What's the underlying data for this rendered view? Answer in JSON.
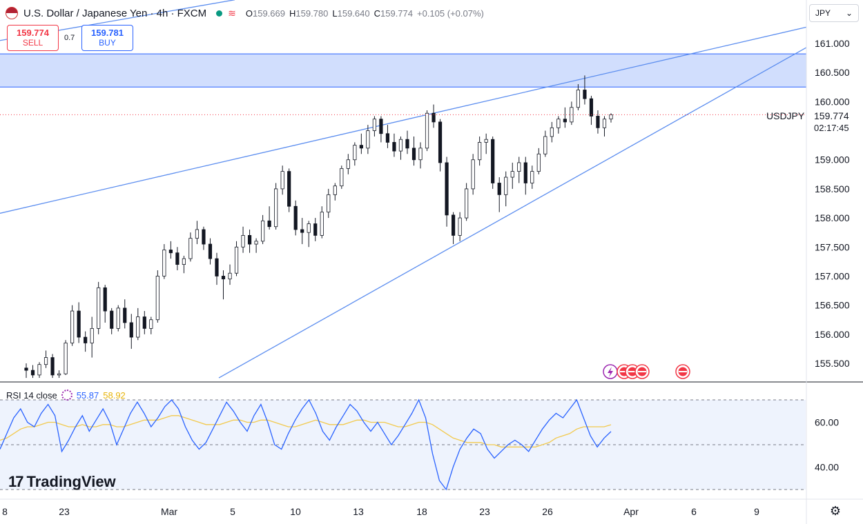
{
  "header": {
    "title": "U.S. Dollar / Japanese Yen · 4h · FXCM",
    "ohlc": [
      {
        "k": "O",
        "v": "159.669"
      },
      {
        "k": "H",
        "v": "159.780"
      },
      {
        "k": "L",
        "v": "159.640"
      },
      {
        "k": "C",
        "v": "159.774"
      },
      {
        "k": "",
        "v": "+0.105 (+0.07%)"
      }
    ]
  },
  "trade": {
    "sell_price": "159.774",
    "sell_label": "SELL",
    "spread": "0.7",
    "buy_price": "159.781",
    "buy_label": "BUY"
  },
  "currency_select": "JPY",
  "price_tag": {
    "symbol": "USDJPY",
    "price": "159.774",
    "countdown": "02:17:45"
  },
  "rsi": {
    "label": "RSI 14 close",
    "rsi_value": "55.87",
    "ma_value": "58.92"
  },
  "brand": "TradingView",
  "colors": {
    "up": "#ffffff",
    "down": "#131722",
    "line": "#5b8def",
    "zone": "#c9d8fd",
    "rsi": "#2962ff",
    "rsi_ma": "#f2c94c"
  },
  "chart_data": {
    "type": "candlestick",
    "price_axis": {
      "ticks": [
        "161.000",
        "160.500",
        "160.000",
        "159.000",
        "158.500",
        "158.000",
        "157.500",
        "157.000",
        "156.500",
        "156.000",
        "155.500"
      ],
      "range": [
        155.25,
        161.6
      ]
    },
    "time_axis": {
      "labels": [
        "8",
        "23",
        "Mar",
        "5",
        "10",
        "13",
        "18",
        "23",
        "26",
        "Apr",
        "6",
        "9"
      ]
    },
    "resistance_zone": [
      160.25,
      160.82
    ],
    "last_price": 159.774,
    "trendlines": {
      "upper": [
        [
          0,
          158.08
        ],
        [
          1168,
          161.28
        ]
      ],
      "lower": [
        [
          317,
          155.25
        ],
        [
          1168,
          160.93
        ]
      ],
      "top_line": [
        [
          0,
          161.05
        ],
        [
          340,
          161.75
        ]
      ]
    },
    "candles": [
      [
        155.42,
        155.5,
        155.25,
        155.38
      ],
      [
        155.38,
        155.47,
        155.25,
        155.3
      ],
      [
        155.3,
        155.52,
        155.25,
        155.48
      ],
      [
        155.48,
        155.72,
        155.42,
        155.6
      ],
      [
        155.6,
        155.66,
        155.25,
        155.3
      ],
      [
        155.3,
        155.38,
        155.25,
        155.32
      ],
      [
        155.32,
        155.9,
        155.3,
        155.85
      ],
      [
        155.85,
        156.5,
        155.8,
        156.4
      ],
      [
        156.4,
        156.55,
        155.85,
        155.95
      ],
      [
        155.95,
        156.05,
        155.7,
        155.85
      ],
      [
        155.85,
        156.3,
        155.6,
        156.1
      ],
      [
        156.1,
        156.9,
        156.0,
        156.8
      ],
      [
        156.8,
        156.85,
        156.2,
        156.4
      ],
      [
        156.4,
        156.45,
        156.0,
        156.1
      ],
      [
        156.1,
        156.5,
        156.05,
        156.45
      ],
      [
        156.45,
        156.6,
        156.1,
        156.2
      ],
      [
        156.2,
        156.35,
        155.75,
        155.95
      ],
      [
        155.95,
        156.45,
        155.9,
        156.3
      ],
      [
        156.3,
        156.4,
        156.0,
        156.1
      ],
      [
        156.1,
        156.3,
        156.0,
        156.25
      ],
      [
        156.25,
        157.1,
        156.2,
        157.0
      ],
      [
        157.0,
        157.55,
        156.95,
        157.45
      ],
      [
        157.45,
        157.6,
        157.3,
        157.4
      ],
      [
        157.4,
        157.5,
        157.1,
        157.2
      ],
      [
        157.2,
        157.35,
        157.05,
        157.3
      ],
      [
        157.3,
        157.75,
        157.25,
        157.65
      ],
      [
        157.65,
        157.95,
        157.55,
        157.8
      ],
      [
        157.8,
        157.85,
        157.45,
        157.55
      ],
      [
        157.55,
        157.65,
        157.2,
        157.3
      ],
      [
        157.3,
        157.4,
        156.85,
        157.0
      ],
      [
        157.0,
        157.1,
        156.6,
        156.95
      ],
      [
        156.95,
        157.2,
        156.85,
        157.05
      ],
      [
        157.05,
        157.6,
        157.0,
        157.5
      ],
      [
        157.5,
        157.85,
        157.4,
        157.7
      ],
      [
        157.7,
        157.8,
        157.4,
        157.55
      ],
      [
        157.55,
        157.65,
        157.4,
        157.6
      ],
      [
        157.6,
        158.05,
        157.55,
        157.95
      ],
      [
        157.95,
        158.2,
        157.8,
        157.85
      ],
      [
        157.85,
        158.6,
        157.8,
        158.5
      ],
      [
        158.5,
        158.9,
        158.4,
        158.8
      ],
      [
        158.8,
        158.85,
        158.1,
        158.2
      ],
      [
        158.2,
        158.3,
        157.7,
        157.8
      ],
      [
        157.8,
        158.0,
        157.55,
        157.75
      ],
      [
        157.75,
        157.95,
        157.5,
        157.9
      ],
      [
        157.9,
        158.0,
        157.6,
        157.7
      ],
      [
        157.7,
        158.2,
        157.65,
        158.1
      ],
      [
        158.1,
        158.5,
        158.0,
        158.4
      ],
      [
        158.4,
        158.6,
        158.3,
        158.55
      ],
      [
        158.55,
        158.9,
        158.5,
        158.85
      ],
      [
        158.85,
        159.1,
        158.75,
        159.0
      ],
      [
        159.0,
        159.3,
        158.9,
        159.25
      ],
      [
        159.25,
        159.45,
        159.1,
        159.2
      ],
      [
        159.2,
        159.6,
        159.1,
        159.5
      ],
      [
        159.5,
        159.75,
        159.4,
        159.7
      ],
      [
        159.7,
        159.75,
        159.3,
        159.45
      ],
      [
        159.45,
        159.6,
        159.2,
        159.3
      ],
      [
        159.3,
        159.45,
        159.05,
        159.15
      ],
      [
        159.15,
        159.4,
        159.0,
        159.35
      ],
      [
        159.35,
        159.5,
        159.1,
        159.2
      ],
      [
        159.2,
        159.4,
        158.9,
        159.0
      ],
      [
        159.0,
        159.3,
        158.85,
        159.2
      ],
      [
        159.2,
        159.85,
        159.15,
        159.8
      ],
      [
        159.8,
        159.95,
        159.55,
        159.65
      ],
      [
        159.65,
        159.7,
        158.8,
        158.95
      ],
      [
        158.95,
        159.05,
        157.85,
        158.05
      ],
      [
        158.05,
        158.1,
        157.55,
        157.7
      ],
      [
        157.7,
        158.1,
        157.6,
        158.0
      ],
      [
        158.0,
        158.6,
        157.95,
        158.5
      ],
      [
        158.5,
        159.1,
        158.4,
        159.0
      ],
      [
        159.0,
        159.4,
        158.9,
        159.3
      ],
      [
        159.3,
        159.45,
        159.1,
        159.35
      ],
      [
        159.35,
        159.4,
        158.5,
        158.6
      ],
      [
        158.6,
        158.7,
        158.1,
        158.4
      ],
      [
        158.4,
        158.8,
        158.2,
        158.7
      ],
      [
        158.7,
        158.95,
        158.5,
        158.8
      ],
      [
        158.8,
        159.05,
        158.6,
        158.95
      ],
      [
        158.95,
        159.05,
        158.4,
        158.6
      ],
      [
        158.6,
        158.9,
        158.5,
        158.8
      ],
      [
        158.8,
        159.2,
        158.75,
        159.1
      ],
      [
        159.1,
        159.5,
        159.05,
        159.4
      ],
      [
        159.4,
        159.65,
        159.3,
        159.55
      ],
      [
        159.55,
        159.75,
        159.45,
        159.7
      ],
      [
        159.7,
        159.9,
        159.55,
        159.65
      ],
      [
        159.65,
        160.0,
        159.6,
        159.9
      ],
      [
        159.9,
        160.3,
        159.85,
        160.2
      ],
      [
        160.2,
        160.45,
        159.95,
        160.05
      ],
      [
        160.05,
        160.1,
        159.6,
        159.75
      ],
      [
        159.75,
        159.85,
        159.45,
        159.55
      ],
      [
        159.55,
        159.75,
        159.4,
        159.7
      ],
      [
        159.7,
        159.8,
        159.64,
        159.774
      ]
    ],
    "rsi_axis": {
      "ticks": [
        "60.00",
        "40.00"
      ],
      "levels": [
        70,
        50,
        30
      ]
    },
    "rsi_series": [
      48,
      55,
      62,
      66,
      60,
      58,
      64,
      68,
      63,
      47,
      52,
      58,
      63,
      56,
      61,
      66,
      60,
      50,
      57,
      64,
      69,
      64,
      58,
      62,
      67,
      70,
      66,
      58,
      52,
      48,
      51,
      57,
      63,
      69,
      65,
      60,
      56,
      63,
      68,
      60,
      50,
      48,
      55,
      61,
      66,
      70,
      64,
      56,
      52,
      58,
      63,
      68,
      65,
      60,
      56,
      60,
      55,
      50,
      54,
      59,
      64,
      70,
      62,
      46,
      34,
      30,
      40,
      48,
      53,
      57,
      55,
      48,
      44,
      47,
      50,
      52,
      50,
      47,
      52,
      57,
      61,
      64,
      62,
      66,
      70,
      62,
      54,
      49,
      53,
      55.87
    ],
    "rsi_ma_series": [
      52,
      53,
      55,
      57,
      58,
      58,
      59,
      60,
      60,
      59,
      58,
      58,
      59,
      58,
      58,
      59,
      59,
      58,
      58,
      59,
      60,
      61,
      61,
      61,
      62,
      63,
      63,
      62,
      61,
      60,
      59,
      59,
      59,
      60,
      61,
      61,
      60,
      60,
      61,
      61,
      60,
      59,
      58,
      58,
      59,
      60,
      61,
      60,
      59,
      59,
      59,
      60,
      61,
      61,
      60,
      60,
      60,
      59,
      58,
      58,
      59,
      60,
      60,
      59,
      57,
      55,
      53,
      52,
      51,
      51,
      51,
      50,
      50,
      49,
      49,
      49,
      49,
      49,
      49,
      50,
      51,
      53,
      54,
      55,
      57,
      58,
      58,
      58,
      58,
      58.92
    ]
  }
}
